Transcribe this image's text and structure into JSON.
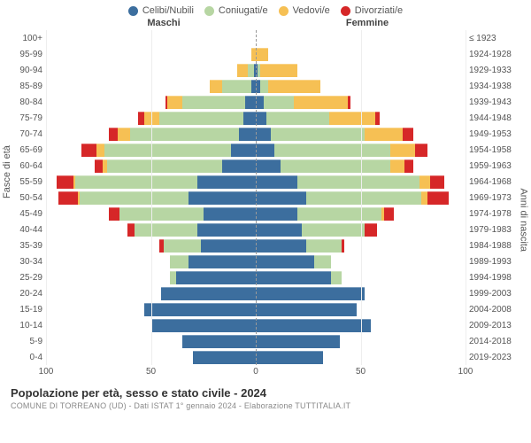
{
  "colors": {
    "celibi": "#3c6e9e",
    "coniugati": "#b7d6a3",
    "vedovi": "#f6c054",
    "divorziati": "#d62728",
    "grid": "#eeeeee",
    "center_dash": "#999999",
    "text": "#555555",
    "bg": "#ffffff"
  },
  "legend": [
    {
      "key": "celibi",
      "label": "Celibi/Nubili"
    },
    {
      "key": "coniugati",
      "label": "Coniugati/e"
    },
    {
      "key": "vedovi",
      "label": "Vedovi/e"
    },
    {
      "key": "divorziati",
      "label": "Divorziati/e"
    }
  ],
  "header_left": "Maschi",
  "header_right": "Femmine",
  "yaxis_left_label": "Fasce di età",
  "yaxis_right_label": "Anni di nascita",
  "xaxis": {
    "max": 100,
    "ticks": [
      100,
      50,
      0,
      50,
      100
    ]
  },
  "age_bands": [
    "100+",
    "95-99",
    "90-94",
    "85-89",
    "80-84",
    "75-79",
    "70-74",
    "65-69",
    "60-64",
    "55-59",
    "50-54",
    "45-49",
    "40-44",
    "35-39",
    "30-34",
    "25-29",
    "20-24",
    "15-19",
    "10-14",
    "5-9",
    "0-4"
  ],
  "birth_years": [
    "≤ 1923",
    "1924-1928",
    "1929-1933",
    "1934-1938",
    "1939-1943",
    "1944-1948",
    "1949-1953",
    "1954-1958",
    "1959-1963",
    "1964-1968",
    "1969-1973",
    "1974-1978",
    "1979-1983",
    "1984-1988",
    "1989-1993",
    "1994-1998",
    "1999-2003",
    "2004-2008",
    "2009-2013",
    "2014-2018",
    "2019-2023"
  ],
  "data": {
    "male": [
      {
        "cel": 0,
        "con": 0,
        "ved": 0,
        "div": 0
      },
      {
        "cel": 0,
        "con": 0,
        "ved": 2,
        "div": 0
      },
      {
        "cel": 1,
        "con": 3,
        "ved": 5,
        "div": 0
      },
      {
        "cel": 2,
        "con": 14,
        "ved": 6,
        "div": 0
      },
      {
        "cel": 5,
        "con": 30,
        "ved": 7,
        "div": 1
      },
      {
        "cel": 6,
        "con": 40,
        "ved": 7,
        "div": 3
      },
      {
        "cel": 8,
        "con": 52,
        "ved": 6,
        "div": 4
      },
      {
        "cel": 12,
        "con": 60,
        "ved": 4,
        "div": 7
      },
      {
        "cel": 16,
        "con": 55,
        "ved": 2,
        "div": 4
      },
      {
        "cel": 28,
        "con": 58,
        "ved": 1,
        "div": 8
      },
      {
        "cel": 32,
        "con": 52,
        "ved": 1,
        "div": 9
      },
      {
        "cel": 25,
        "con": 40,
        "ved": 0,
        "div": 5
      },
      {
        "cel": 28,
        "con": 30,
        "ved": 0,
        "div": 3
      },
      {
        "cel": 26,
        "con": 18,
        "ved": 0,
        "div": 2
      },
      {
        "cel": 32,
        "con": 9,
        "ved": 0,
        "div": 0
      },
      {
        "cel": 38,
        "con": 3,
        "ved": 0,
        "div": 0
      },
      {
        "cel": 45,
        "con": 0,
        "ved": 0,
        "div": 0
      },
      {
        "cel": 53,
        "con": 0,
        "ved": 0,
        "div": 0
      },
      {
        "cel": 50,
        "con": 0,
        "ved": 0,
        "div": 0
      },
      {
        "cel": 35,
        "con": 0,
        "ved": 0,
        "div": 0
      },
      {
        "cel": 30,
        "con": 0,
        "ved": 0,
        "div": 0
      }
    ],
    "female": [
      {
        "cel": 0,
        "con": 0,
        "ved": 0,
        "div": 0
      },
      {
        "cel": 0,
        "con": 0,
        "ved": 6,
        "div": 0
      },
      {
        "cel": 1,
        "con": 1,
        "ved": 18,
        "div": 0
      },
      {
        "cel": 2,
        "con": 4,
        "ved": 25,
        "div": 0
      },
      {
        "cel": 4,
        "con": 14,
        "ved": 26,
        "div": 1
      },
      {
        "cel": 5,
        "con": 30,
        "ved": 22,
        "div": 2
      },
      {
        "cel": 7,
        "con": 45,
        "ved": 18,
        "div": 5
      },
      {
        "cel": 9,
        "con": 55,
        "ved": 12,
        "div": 6
      },
      {
        "cel": 12,
        "con": 52,
        "ved": 7,
        "div": 4
      },
      {
        "cel": 20,
        "con": 58,
        "ved": 5,
        "div": 7
      },
      {
        "cel": 24,
        "con": 55,
        "ved": 3,
        "div": 10
      },
      {
        "cel": 20,
        "con": 40,
        "ved": 1,
        "div": 5
      },
      {
        "cel": 22,
        "con": 30,
        "ved": 0,
        "div": 6
      },
      {
        "cel": 24,
        "con": 17,
        "ved": 0,
        "div": 1
      },
      {
        "cel": 28,
        "con": 8,
        "ved": 0,
        "div": 0
      },
      {
        "cel": 36,
        "con": 5,
        "ved": 0,
        "div": 0
      },
      {
        "cel": 52,
        "con": 0,
        "ved": 0,
        "div": 0
      },
      {
        "cel": 48,
        "con": 0,
        "ved": 0,
        "div": 0
      },
      {
        "cel": 55,
        "con": 0,
        "ved": 0,
        "div": 0
      },
      {
        "cel": 40,
        "con": 0,
        "ved": 0,
        "div": 0
      },
      {
        "cel": 32,
        "con": 0,
        "ved": 0,
        "div": 0
      }
    ]
  },
  "title": "Popolazione per età, sesso e stato civile - 2024",
  "subtitle": "COMUNE DI TORREANO (UD) - Dati ISTAT 1° gennaio 2024 - Elaborazione TUTTITALIA.IT",
  "chart_type": "population-pyramid-stacked",
  "font_family": "Arial",
  "title_fontsize": 13,
  "label_fontsize": 10
}
